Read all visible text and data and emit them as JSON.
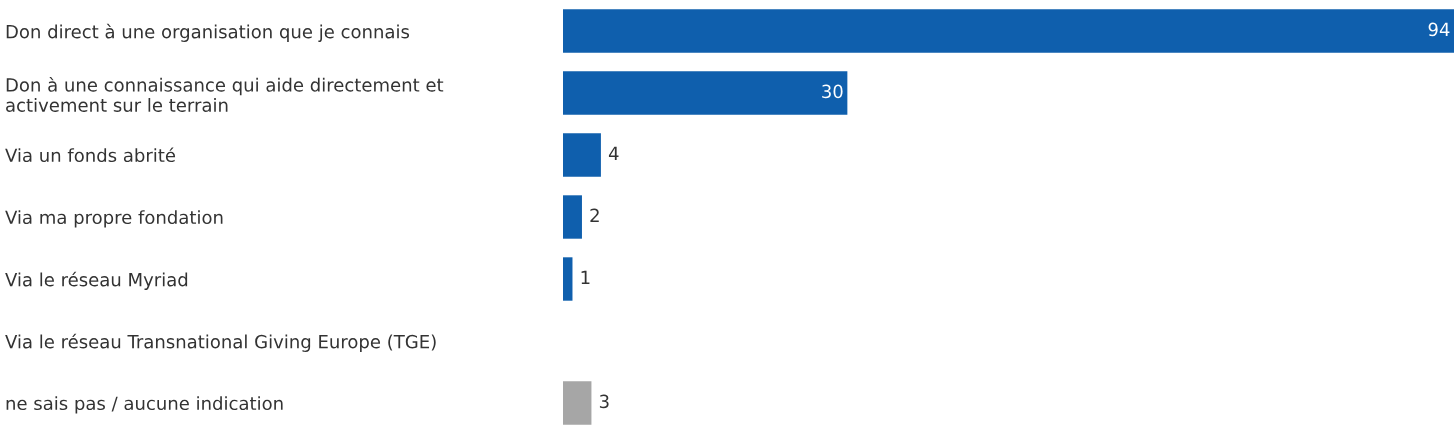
{
  "chart_data": {
    "type": "bar",
    "orientation": "horizontal",
    "categories": [
      "Don direct à une organisation que je connais",
      "Don à une connaissance qui aide directement et\nactivement sur le terrain",
      "Via un fonds abrité",
      "Via ma propre fondation",
      "Via le réseau Myriad",
      "Via le réseau Transnational Giving Europe (TGE)",
      "ne sais pas / aucune indication"
    ],
    "values": [
      94,
      30,
      4,
      2,
      1,
      null,
      3
    ],
    "colors": [
      "#0f5fad",
      "#0f5fad",
      "#0f5fad",
      "#0f5fad",
      "#0f5fad",
      "#0f5fad",
      "#a6a6a6"
    ],
    "value_labels": [
      "94",
      "30",
      "4",
      "2",
      "1",
      null,
      "3"
    ],
    "grid": false,
    "legend": false
  }
}
